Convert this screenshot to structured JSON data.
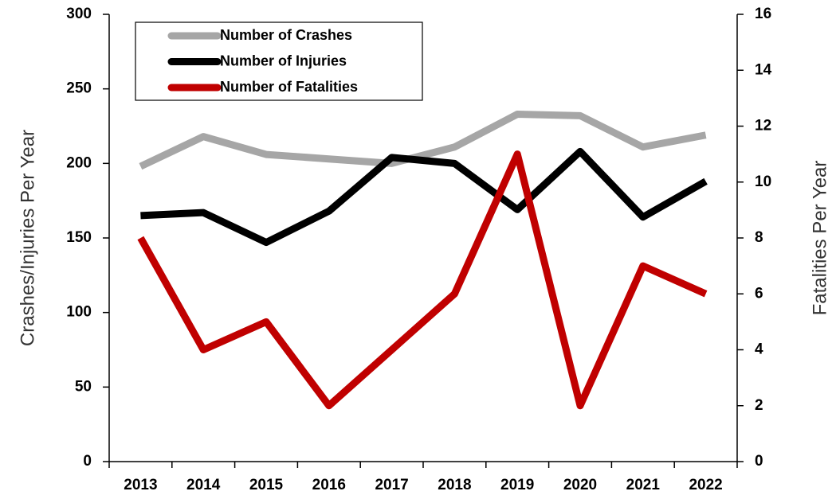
{
  "chart_data": {
    "type": "line",
    "categories": [
      "2013",
      "2014",
      "2015",
      "2016",
      "2017",
      "2018",
      "2019",
      "2020",
      "2021",
      "2022"
    ],
    "series": [
      {
        "name": "Number of Crashes",
        "color": "#a6a6a6",
        "values": [
          198,
          218,
          206,
          203,
          200,
          211,
          233,
          232,
          211,
          219
        ]
      },
      {
        "name": "Number of Injuries",
        "color": "#000000",
        "values": [
          165,
          167,
          147,
          168,
          204,
          200,
          169,
          208,
          164,
          188
        ]
      },
      {
        "name": "Number of Fatalities",
        "color": "#c00000",
        "axis": "y2",
        "values": [
          8,
          4,
          5,
          2,
          4,
          6,
          11,
          2,
          7,
          6
        ]
      }
    ],
    "ylabel": "Crashes/Injuries Per Year",
    "y2label": "Fatalities Per Year",
    "ylim": [
      0,
      300
    ],
    "yticks": [
      0,
      50,
      100,
      150,
      200,
      250,
      300
    ],
    "y2lim": [
      0,
      16
    ],
    "y2ticks": [
      0,
      2,
      4,
      6,
      8,
      10,
      12,
      14,
      16
    ],
    "legend": "upper left",
    "grid": false
  }
}
